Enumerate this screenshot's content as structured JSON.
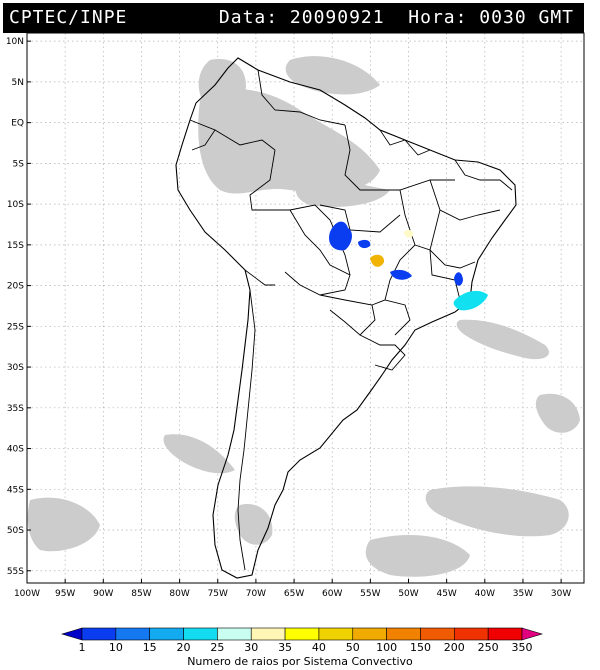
{
  "header": {
    "org": "CPTEC/INPE",
    "info": "Data: 20090921  Hora: 0030 GMT"
  },
  "map": {
    "lat_labels": [
      "10N",
      "5N",
      "EQ",
      "5S",
      "10S",
      "15S",
      "20S",
      "25S",
      "30S",
      "35S",
      "40S",
      "45S",
      "50S",
      "55S"
    ],
    "lon_labels": [
      "100W",
      "95W",
      "90W",
      "85W",
      "80W",
      "75W",
      "70W",
      "65W",
      "60W",
      "55W",
      "50W",
      "45W",
      "40W",
      "35W",
      "30W"
    ],
    "lat_range": [
      11,
      -56.5
    ],
    "lon_range": [
      -100,
      -27
    ],
    "colors": {
      "frame": "#000000",
      "grid": "#b0b0b0",
      "clouds": "#c8c8c8",
      "land": "#ffffff"
    },
    "convective_systems": [
      {
        "class": "1-10",
        "color": "#0a3cf0",
        "center": [
          -59.5,
          -12.5
        ]
      },
      {
        "class": "1-10",
        "color": "#0a3cf0",
        "center": [
          -56,
          -13
        ]
      },
      {
        "class": "1-10",
        "color": "#0a3cf0",
        "center": [
          -50.5,
          -18
        ]
      },
      {
        "class": "1-10",
        "color": "#0a3cf0",
        "center": [
          -42.5,
          -17
        ]
      },
      {
        "class": "40-50",
        "color": "#f0b400",
        "center": [
          -54.5,
          -16
        ]
      },
      {
        "class": "25-30",
        "color": "#fffac8",
        "center": [
          -52,
          -12
        ]
      },
      {
        "class": "20-25",
        "color": "#10e0f0",
        "center": [
          -42.5,
          -21.5
        ]
      }
    ]
  },
  "colorbar": {
    "ticks": [
      "1",
      "10",
      "15",
      "20",
      "25",
      "30",
      "35",
      "40",
      "50",
      "100",
      "150",
      "200",
      "250",
      "350"
    ],
    "colors": [
      "#0000c8",
      "#0a3cf0",
      "#1478f0",
      "#14aaf0",
      "#14dcf0",
      "#c8fff0",
      "#fff5b4",
      "#ffff00",
      "#f0d200",
      "#f0aa00",
      "#f08200",
      "#f05a00",
      "#f03200",
      "#f00000",
      "#e00080"
    ],
    "title": "Numero de raios por Sistema Convectivo"
  }
}
